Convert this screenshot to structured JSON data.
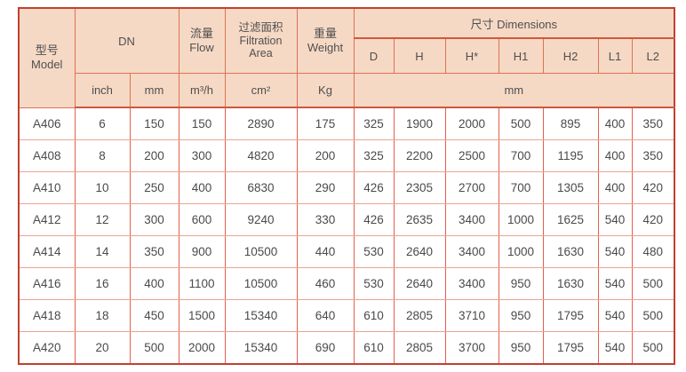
{
  "header": {
    "model_zh": "型号",
    "model_en": "Model",
    "dn": "DN",
    "flow_zh": "流量",
    "flow_en": "Flow",
    "area_zh": "过滤面积",
    "area_en1": "Filtration",
    "area_en2": "Area",
    "weight_zh": "重量",
    "weight_en": "Weight",
    "dimensions": "尺寸 Dimensions",
    "dim_cols": [
      "D",
      "H",
      "H*",
      "H1",
      "H2",
      "L1",
      "L2"
    ],
    "unit_inch": "inch",
    "unit_mm": "mm",
    "unit_flow": "m³/h",
    "unit_area": "cm²",
    "unit_weight": "Kg",
    "unit_dims": "mm"
  },
  "rows": [
    [
      "A406",
      "6",
      "150",
      "150",
      "2890",
      "175",
      "325",
      "1900",
      "2000",
      "500",
      "895",
      "400",
      "350"
    ],
    [
      "A408",
      "8",
      "200",
      "300",
      "4820",
      "200",
      "325",
      "2200",
      "2500",
      "700",
      "1195",
      "400",
      "350"
    ],
    [
      "A410",
      "10",
      "250",
      "400",
      "6830",
      "290",
      "426",
      "2305",
      "2700",
      "700",
      "1305",
      "400",
      "420"
    ],
    [
      "A412",
      "12",
      "300",
      "600",
      "9240",
      "330",
      "426",
      "2635",
      "3400",
      "1000",
      "1625",
      "540",
      "420"
    ],
    [
      "A414",
      "14",
      "350",
      "900",
      "10500",
      "440",
      "530",
      "2640",
      "3400",
      "1000",
      "1630",
      "540",
      "480"
    ],
    [
      "A416",
      "16",
      "400",
      "1100",
      "10500",
      "460",
      "530",
      "2640",
      "3400",
      "950",
      "1630",
      "540",
      "500"
    ],
    [
      "A418",
      "18",
      "450",
      "1500",
      "15340",
      "640",
      "610",
      "2805",
      "3710",
      "950",
      "1795",
      "540",
      "500"
    ],
    [
      "A420",
      "20",
      "500",
      "2000",
      "15340",
      "690",
      "610",
      "2805",
      "3700",
      "950",
      "1795",
      "540",
      "500"
    ]
  ],
  "colors": {
    "header_background": "#f6d9c5",
    "outer_border": "#bf4130",
    "header_grid": "#dd7255",
    "body_grid_vertical": "#e4604d",
    "body_grid_horizontal": "#f0a090",
    "text": "#4a4a4a"
  }
}
